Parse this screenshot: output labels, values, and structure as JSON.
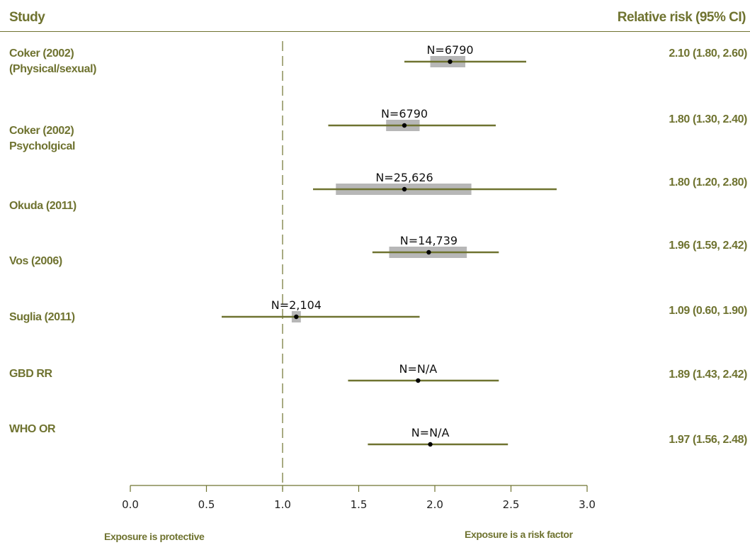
{
  "colors": {
    "accent": "#6f7330",
    "ci_box": "#b7b7b7",
    "point": "#000000",
    "axis": "#6f7330",
    "reference_line": "#6f7330",
    "tick_text": "#222222"
  },
  "header": {
    "study": "Study",
    "effect": "Relative risk (95% CI)"
  },
  "footer": {
    "protective": "Exposure is protective",
    "risk": "Exposure is a risk factor"
  },
  "chart_data": {
    "type": "forest",
    "title": "",
    "xlabel": "",
    "ylabel": "",
    "xlim": [
      0,
      3
    ],
    "xticks": [
      0,
      0.5,
      1,
      1.5,
      2,
      2.5,
      3
    ],
    "xtick_labels": [
      "0.0",
      "0.5",
      "1.0",
      "1.5",
      "2.0",
      "2.5",
      "3.0"
    ],
    "reference_value": 1.0,
    "studies": [
      {
        "label_lines": [
          "Coker (2002)",
          "(Physical/sexual)"
        ],
        "n_label": "N=6790",
        "rr": 2.1,
        "lower": 1.8,
        "upper": 2.6,
        "box_low": 1.97,
        "box_high": 2.2,
        "ci_text": "2.10 (1.80, 2.60)"
      },
      {
        "label_lines": [
          "Coker (2002)",
          "Psycholgical"
        ],
        "n_label": "N=6790",
        "rr": 1.8,
        "lower": 1.3,
        "upper": 2.4,
        "box_low": 1.68,
        "box_high": 1.9,
        "ci_text": "1.80 (1.30, 2.40)"
      },
      {
        "label_lines": [
          "Okuda (2011)"
        ],
        "n_label": "N=25,626",
        "rr": 1.8,
        "lower": 1.2,
        "upper": 2.8,
        "box_low": 1.35,
        "box_high": 2.24,
        "ci_text": "1.80 (1.20, 2.80)"
      },
      {
        "label_lines": [
          "Vos (2006)"
        ],
        "n_label": "N=14,739",
        "rr": 1.96,
        "lower": 1.59,
        "upper": 2.42,
        "box_low": 1.7,
        "box_high": 2.21,
        "ci_text": "1.96 (1.59, 2.42)"
      },
      {
        "label_lines": [
          "Suglia (2011)"
        ],
        "n_label": "N=2,104",
        "rr": 1.09,
        "lower": 0.6,
        "upper": 1.9,
        "box_low": 1.06,
        "box_high": 1.12,
        "ci_text": "1.09 (0.60, 1.90)"
      },
      {
        "label_lines": [
          "GBD RR"
        ],
        "n_label": "N=N/A",
        "rr": 1.89,
        "lower": 1.43,
        "upper": 2.42,
        "box_low": null,
        "box_high": null,
        "ci_text": "1.89 (1.43, 2.42)"
      },
      {
        "label_lines": [
          "WHO OR"
        ],
        "n_label": "N=N/A",
        "rr": 1.97,
        "lower": 1.56,
        "upper": 2.48,
        "box_low": null,
        "box_high": null,
        "ci_text": "1.97 (1.56, 2.48)"
      }
    ]
  }
}
